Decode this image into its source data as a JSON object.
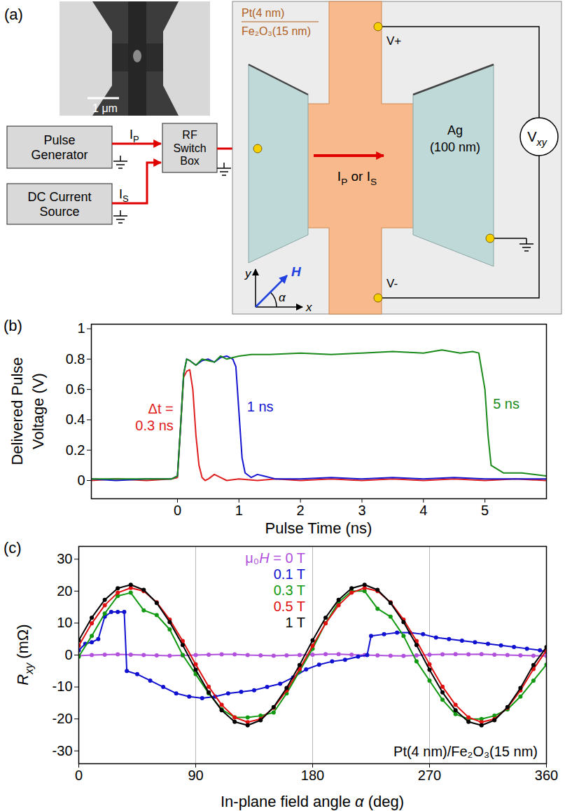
{
  "diagram": {
    "panel_label": "(a)",
    "scale_bar": "1 μm",
    "pulse_generator": [
      "Pulse",
      "Generator"
    ],
    "rf_switch_box": [
      "RF",
      "Switch",
      "Box"
    ],
    "dc_current_source": [
      "DC Current",
      "Source"
    ],
    "pulse_current": [
      {
        "text": "I"
      },
      {
        "text": "P",
        "style": "sub"
      }
    ],
    "dc_current": [
      {
        "text": "I"
      },
      {
        "text": "S",
        "style": "sub"
      }
    ],
    "film": [
      "Pt(4 nm)",
      "Fe₂O₃(15 nm)"
    ],
    "electrode": [
      "Ag",
      "(100 nm)"
    ],
    "channel_current": [
      {
        "text": "I"
      },
      {
        "text": "P",
        "style": "sub"
      },
      {
        "text": " or I"
      },
      {
        "text": "S",
        "style": "sub"
      }
    ],
    "voltage_plus": "V+",
    "voltage_minus": "V-",
    "voltmeter": [
      {
        "text": "V"
      },
      {
        "text": "xy",
        "style": "italic-sub"
      }
    ],
    "axis_x": "x",
    "axis_y": "y",
    "field": "H",
    "angle": "α"
  },
  "chart_data": [
    {
      "type": "line",
      "panel_label": "(b)",
      "xlabel": "Pulse Time (ns)",
      "ylabel": "Delivered Pulse Voltage (V)",
      "xlim": [
        -1.4,
        6
      ],
      "xticks": [
        0,
        1,
        2,
        3,
        4,
        5
      ],
      "ylim": [
        -0.12,
        1.03
      ],
      "yticks": [
        0,
        0.2,
        0.4,
        0.6,
        0.8,
        1
      ],
      "annotations": [
        "Δt ="
      ],
      "series": [
        {
          "name": "0.3 ns",
          "color": "#e02020",
          "x": [
            -1.4,
            -1,
            -0.5,
            -0.1,
            0,
            0.05,
            0.1,
            0.15,
            0.2,
            0.25,
            0.3,
            0.35,
            0.4,
            0.45,
            0.5,
            0.6,
            0.7,
            0.8,
            1,
            1.3,
            1.6,
            2,
            2.5,
            3,
            3.5,
            4,
            4.5,
            5,
            5.5,
            6
          ],
          "values": [
            0,
            0.01,
            0,
            0.01,
            0.02,
            0.35,
            0.68,
            0.72,
            0.73,
            0.6,
            0.3,
            0.1,
            0.02,
            0,
            0.01,
            0.04,
            0.02,
            0,
            0.01,
            0,
            0.01,
            0,
            0.01,
            0,
            0.01,
            0,
            0.01,
            0,
            0.01,
            0
          ]
        },
        {
          "name": "1 ns",
          "color": "#1515d0",
          "x": [
            -1.4,
            -1,
            -0.5,
            -0.1,
            0,
            0.05,
            0.1,
            0.15,
            0.2,
            0.3,
            0.4,
            0.5,
            0.6,
            0.7,
            0.8,
            0.9,
            0.95,
            1,
            1.05,
            1.1,
            1.2,
            1.3,
            1.4,
            1.6,
            2,
            2.5,
            3,
            3.5,
            4,
            4.5,
            5,
            5.5,
            6
          ],
          "values": [
            0.01,
            0,
            0.01,
            0.01,
            0.03,
            0.35,
            0.7,
            0.8,
            0.79,
            0.76,
            0.79,
            0.8,
            0.78,
            0.81,
            0.82,
            0.8,
            0.75,
            0.45,
            0.15,
            0.05,
            0.02,
            0.04,
            0.03,
            0.01,
            0.01,
            0.02,
            0.01,
            0.02,
            0.01,
            0.02,
            0.01,
            0.01,
            0.01
          ]
        },
        {
          "name": "5 ns",
          "color": "#1a8a1a",
          "x": [
            -1.4,
            -1,
            -0.5,
            -0.1,
            0,
            0.05,
            0.1,
            0.15,
            0.2,
            0.3,
            0.4,
            0.5,
            0.6,
            0.7,
            0.8,
            1,
            1.2,
            1.5,
            2,
            2.5,
            3,
            3.5,
            4,
            4.3,
            4.6,
            4.8,
            4.9,
            5,
            5.05,
            5.1,
            5.3,
            5.6,
            6
          ],
          "values": [
            0.01,
            0.01,
            0.01,
            0.01,
            0.03,
            0.35,
            0.7,
            0.8,
            0.79,
            0.76,
            0.8,
            0.79,
            0.78,
            0.82,
            0.8,
            0.82,
            0.83,
            0.83,
            0.84,
            0.83,
            0.84,
            0.85,
            0.84,
            0.86,
            0.84,
            0.85,
            0.84,
            0.6,
            0.3,
            0.1,
            0.05,
            0.05,
            0.03
          ]
        }
      ]
    },
    {
      "type": "line",
      "marker": "circle",
      "panel_label": "(c)",
      "xlabel": [
        {
          "text": "In-plane field angle "
        },
        {
          "text": "α",
          "style": "italic"
        },
        {
          "text": " (deg)"
        }
      ],
      "ylabel": [
        {
          "text": "R",
          "style": "italic"
        },
        {
          "text": "xy",
          "style": "italic-sub"
        },
        {
          "text": " (mΩ)"
        }
      ],
      "xlim": [
        0,
        360
      ],
      "xticks": [
        0,
        90,
        180,
        270,
        360
      ],
      "ylim": [
        -34,
        34
      ],
      "yticks": [
        -30,
        -20,
        -10,
        0,
        10,
        20,
        30
      ],
      "grid": "x",
      "legend": "top",
      "legend_title": [
        {
          "text": "μ₀"
        },
        {
          "text": "H",
          "style": "italic"
        },
        {
          "text": " = "
        }
      ],
      "annotations": [
        "Pt(4 nm)/Fe₂O₃(15 nm)"
      ],
      "series": [
        {
          "name": "0 T",
          "color": "#b050dd",
          "x": [
            0,
            10,
            20,
            30,
            40,
            50,
            60,
            70,
            80,
            90,
            100,
            110,
            120,
            130,
            140,
            150,
            160,
            170,
            180,
            190,
            200,
            210,
            220,
            230,
            240,
            250,
            260,
            270,
            280,
            290,
            300,
            310,
            320,
            330,
            340,
            350,
            360
          ],
          "values": [
            -0.2,
            0,
            0.1,
            0.2,
            0.1,
            0,
            -0.1,
            -0.2,
            -0.1,
            0,
            0.1,
            0.2,
            0.2,
            0,
            -0.1,
            -0.2,
            -0.1,
            0,
            0.1,
            0.3,
            0.3,
            0.1,
            0,
            -0.1,
            -0.2,
            -0.3,
            -0.1,
            0.1,
            0.2,
            0.3,
            0.2,
            0.3,
            0.1,
            0,
            -0.1,
            -0.2,
            -0.3
          ]
        },
        {
          "name": "0.1 T",
          "color": "#1010d0",
          "x": [
            0,
            5,
            10,
            15,
            20,
            25,
            30,
            35,
            37,
            45,
            55,
            65,
            75,
            85,
            95,
            105,
            115,
            125,
            135,
            145,
            155,
            165,
            175,
            185,
            195,
            205,
            215,
            222,
            225,
            235,
            245,
            255,
            265,
            275,
            285,
            295,
            305,
            315,
            325,
            335,
            345,
            355,
            360
          ],
          "values": [
            1.5,
            3.5,
            4,
            5,
            12,
            13.5,
            13.5,
            13.5,
            -5,
            -6,
            -8,
            -10,
            -12,
            -13,
            -13.5,
            -13,
            -12,
            -11.5,
            -11,
            -10,
            -9,
            -7,
            -4.5,
            -3,
            -2,
            -1.5,
            -0.5,
            0,
            6,
            6.5,
            7,
            7,
            6.5,
            5.5,
            5,
            4.5,
            4,
            3.5,
            3,
            2.5,
            2,
            1.5,
            1
          ]
        },
        {
          "name": "0.3 T",
          "color": "#119911",
          "x": [
            0,
            10,
            20,
            30,
            40,
            50,
            60,
            70,
            80,
            90,
            100,
            110,
            120,
            130,
            140,
            150,
            160,
            170,
            180,
            190,
            200,
            210,
            220,
            230,
            240,
            250,
            260,
            270,
            280,
            290,
            300,
            310,
            320,
            330,
            340,
            350,
            360
          ],
          "values": [
            -0.5,
            6,
            13,
            18.5,
            19.5,
            14,
            12.5,
            8,
            0,
            -6,
            -12,
            -17,
            -19.5,
            -19.5,
            -19,
            -18,
            -12,
            -5,
            2,
            10,
            16.5,
            20,
            20,
            14.5,
            12,
            6,
            -2,
            -8,
            -14,
            -18.5,
            -20,
            -20,
            -19,
            -17,
            -13,
            -8,
            -3
          ]
        },
        {
          "name": "0.5 T",
          "color": "#e01010",
          "x": [
            0,
            10,
            20,
            30,
            40,
            50,
            60,
            70,
            80,
            90,
            100,
            110,
            120,
            130,
            140,
            150,
            160,
            170,
            180,
            190,
            200,
            210,
            220,
            230,
            240,
            250,
            260,
            270,
            280,
            290,
            300,
            310,
            320,
            330,
            340,
            350,
            360
          ],
          "values": [
            2.9,
            9.9,
            15.6,
            19.5,
            21,
            20,
            16.5,
            11.1,
            4.4,
            -2.9,
            -9.9,
            -15.6,
            -19.5,
            -21,
            -20,
            -16.5,
            -11.1,
            -4.4,
            2.9,
            9.9,
            15.6,
            19.5,
            21,
            20,
            16.5,
            11.1,
            4.4,
            -2.9,
            -9.9,
            -15.6,
            -19.5,
            -21,
            -20,
            -16.5,
            -11.1,
            -4.4,
            1.5
          ]
        },
        {
          "name": "1 T",
          "color": "#000000",
          "x": [
            0,
            10,
            20,
            30,
            40,
            50,
            60,
            70,
            80,
            90,
            100,
            110,
            120,
            130,
            140,
            150,
            160,
            170,
            180,
            190,
            200,
            210,
            220,
            230,
            240,
            250,
            260,
            270,
            280,
            290,
            300,
            310,
            320,
            330,
            340,
            350,
            360
          ],
          "values": [
            4.6,
            11.7,
            17.3,
            20.9,
            22,
            20.4,
            16.3,
            10.3,
            3.1,
            -4.6,
            -11.7,
            -17.3,
            -20.9,
            -22,
            -20.4,
            -16.3,
            -10.3,
            -3.1,
            4.6,
            11.7,
            17.3,
            20.9,
            22,
            20.4,
            16.3,
            10.3,
            3.1,
            -4.6,
            -11.7,
            -17.3,
            -20.9,
            -22,
            -20.4,
            -16.3,
            -10.3,
            -3.1,
            2.5
          ]
        }
      ]
    }
  ]
}
